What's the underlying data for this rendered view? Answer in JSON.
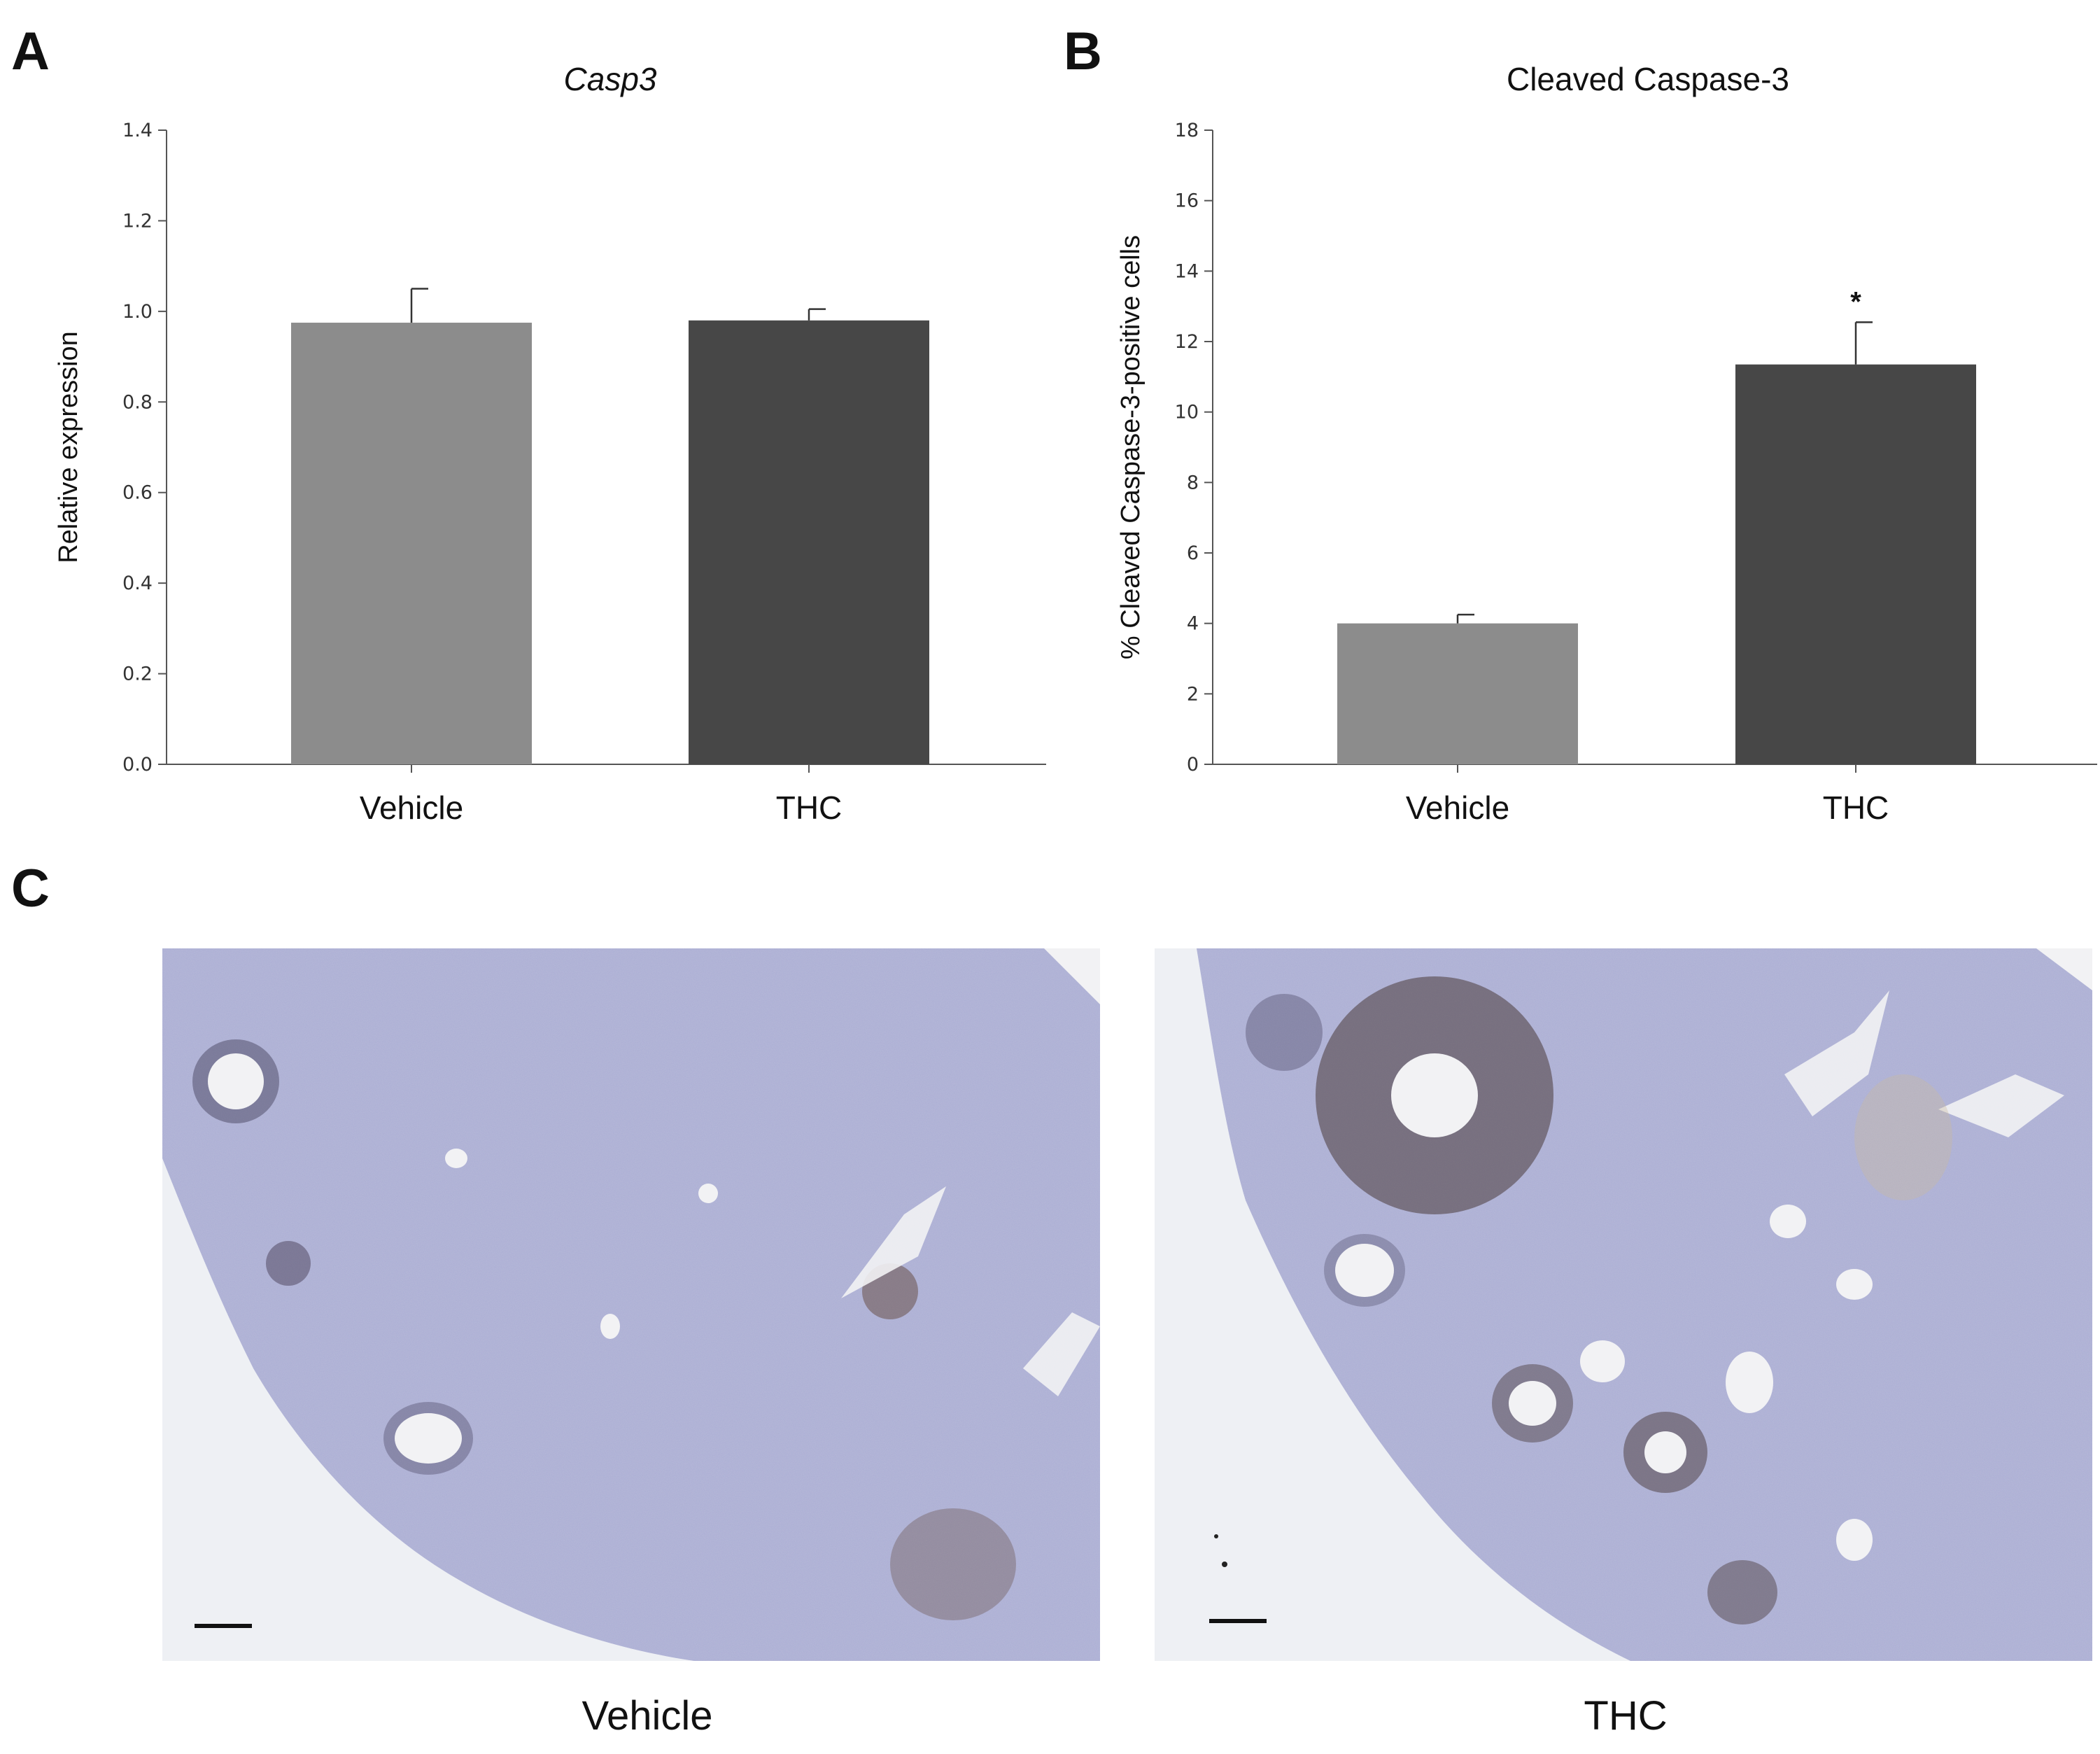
{
  "panels": {
    "a_letter": "A",
    "b_letter": "B",
    "c_letter": "C"
  },
  "chart_data": [
    {
      "type": "bar",
      "title": "Casp3",
      "xlabel": "",
      "ylabel": "Relative expression",
      "categories": [
        "Vehicle",
        "THC"
      ],
      "values": [
        0.975,
        0.98
      ],
      "error": [
        0.075,
        0.025
      ],
      "significance": [
        "",
        ""
      ],
      "ylim": [
        0,
        1.4
      ],
      "yticks": [
        "0.0",
        "0.2",
        "0.4",
        "0.6",
        "0.8",
        "1.0",
        "1.2",
        "1.4"
      ],
      "colors": [
        "#8c8c8c",
        "#474747"
      ],
      "grid": false
    },
    {
      "type": "bar",
      "title": "Cleaved Caspase-3",
      "xlabel": "",
      "ylabel": "% Cleaved Caspase-3-positive cells",
      "categories": [
        "Vehicle",
        "THC"
      ],
      "values": [
        4.0,
        11.35
      ],
      "error": [
        0.25,
        1.2
      ],
      "significance": [
        "",
        "*"
      ],
      "ylim": [
        0,
        18
      ],
      "yticks": [
        "0",
        "2",
        "4",
        "6",
        "8",
        "10",
        "12",
        "14",
        "16",
        "18"
      ],
      "colors": [
        "#8c8c8c",
        "#474747"
      ],
      "grid": false
    }
  ],
  "micrographs": [
    {
      "label": "Vehicle",
      "background": "#b3b5d6"
    },
    {
      "label": "THC",
      "background": "#b3b5d6"
    }
  ]
}
